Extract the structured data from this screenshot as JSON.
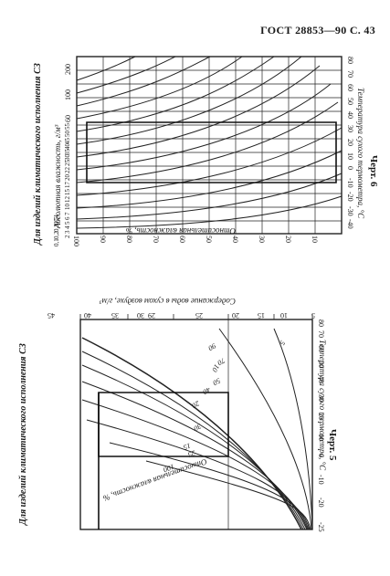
{
  "header": {
    "text": "ГОСТ 28853—90 С. 43"
  },
  "left": {
    "side_title": "Для изделий климатического исполнения СЗ",
    "figure_label": "Черт. 5",
    "axis_temp_label": "Температура сухого термометра, °С",
    "axis_water_label": "Содержание воды в сухом воздухе, г/м³",
    "axis_rh_label": "Относительная влажность, %",
    "temp_ticks": [
      "-25",
      "-20",
      "-10",
      "0",
      "10",
      "20",
      "30",
      "40",
      "50",
      "60",
      "70",
      "80"
    ],
    "water_ticks": [
      "5",
      "10",
      "15",
      "20",
      "25",
      "29",
      "30",
      "35",
      "40",
      "45"
    ],
    "rh_labels": [
      "100",
      "25",
      "15",
      "20",
      "30",
      "40",
      "50",
      "70",
      "90",
      "5",
      "10"
    ]
  },
  "right": {
    "side_title": "Для изделий климатического исполнения СЗ",
    "figure_label": "Черт. 6",
    "axis_temp_label": "Температура сухого термометра, °С",
    "axis_abs_label": "Абсолютная влажность, г/м³",
    "axis_rh_label": "Относительная влажность, %",
    "temp_ticks": [
      "-40",
      "-30",
      "-20",
      "-10",
      "0",
      "10",
      "20",
      "30",
      "40",
      "50",
      "60",
      "70",
      "80"
    ],
    "abs_ticks": [
      "200",
      "100",
      "60",
      "55",
      "50",
      "45",
      "40",
      "35",
      "30",
      "25",
      "22",
      "20",
      "17",
      "15",
      "12",
      "10",
      "7",
      "6",
      "5",
      "4",
      "3",
      "2",
      "1",
      "0,5",
      "0,3",
      "0,2",
      "0,1"
    ],
    "rh_ticks": [
      "100",
      "90",
      "80",
      "70",
      "60",
      "50",
      "40",
      "30",
      "20",
      "10"
    ]
  }
}
